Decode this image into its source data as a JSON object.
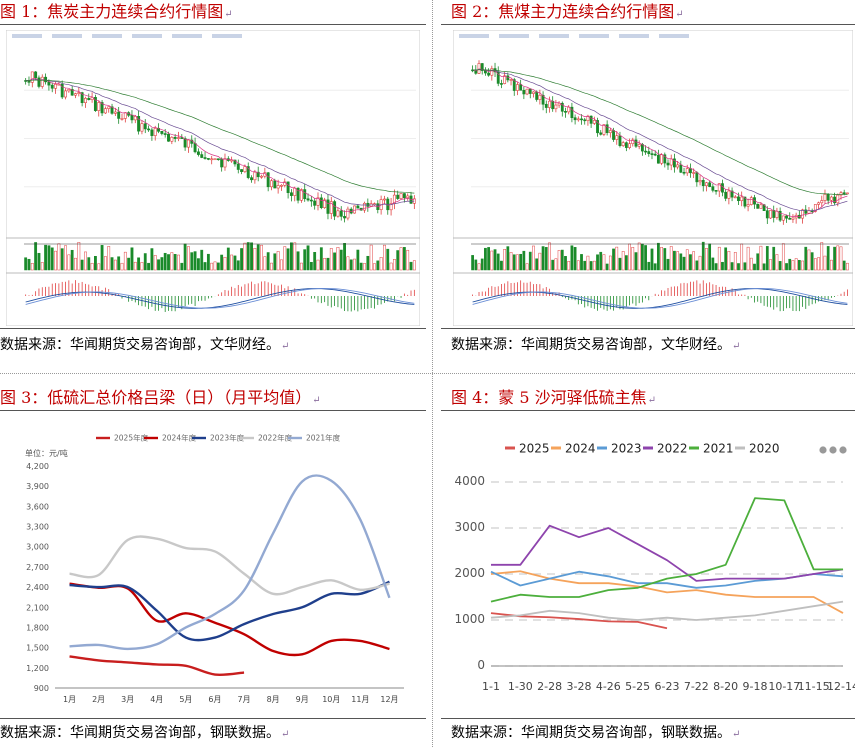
{
  "panels": [
    {
      "title": "图 1：焦炭主力连续合约行情图",
      "source": "数据来源：华闻期货交易咨询部，文华财经。"
    },
    {
      "title": "图 2：焦煤主力连续合约行情图",
      "source": "数据来源：华闻期货交易咨询部，文华财经。"
    },
    {
      "title": "图 3：低硫汇总价格吕梁（日）（月平均值）",
      "source": "数据来源：华闻期货交易咨询部，钢联数据。"
    },
    {
      "title": "图 4：蒙 5 沙河驿低硫主焦",
      "source": "数据来源：华闻期货交易咨询部，钢联数据。"
    }
  ],
  "chart_data": [
    {
      "type": "line",
      "title": "",
      "unit": "单位：元/吨",
      "categories": [
        "1月",
        "2月",
        "3月",
        "4月",
        "5月",
        "6月",
        "7月",
        "8月",
        "9月",
        "10月",
        "11月",
        "12月"
      ],
      "ylim": [
        900,
        4200
      ],
      "yticks": [
        "900",
        "1,200",
        "1,500",
        "1,800",
        "2,100",
        "2,400",
        "2,700",
        "3,000",
        "3,300",
        "3,600",
        "3,900",
        "4,200"
      ],
      "legend_position": "top",
      "series": [
        {
          "name": "2025年度",
          "color": "#c81e1e",
          "values": [
            1370,
            1310,
            1280,
            1250,
            1230,
            1100,
            1130,
            null,
            null,
            null,
            null,
            null
          ]
        },
        {
          "name": "2024年度",
          "color": "#c00000",
          "values": [
            2450,
            2390,
            2380,
            1900,
            2010,
            1870,
            1700,
            1450,
            1400,
            1600,
            1600,
            1480
          ]
        },
        {
          "name": "2023年度",
          "color": "#1f3f8c",
          "values": [
            2430,
            2400,
            2400,
            2050,
            1650,
            1650,
            1850,
            2000,
            2100,
            2300,
            2300,
            2480
          ]
        },
        {
          "name": "2022年度",
          "color": "#c8c8c8",
          "values": [
            2600,
            2580,
            3100,
            3120,
            2980,
            2930,
            2600,
            2300,
            2400,
            2500,
            2360,
            2450
          ]
        },
        {
          "name": "2021年度",
          "color": "#93a9d2",
          "values": [
            1520,
            1540,
            1480,
            1550,
            1800,
            2000,
            2350,
            3200,
            3970,
            3980,
            3400,
            2240
          ]
        }
      ]
    },
    {
      "type": "line",
      "title": "",
      "categories": [
        "1-1",
        "1-30",
        "2-28",
        "3-28",
        "4-26",
        "5-25",
        "6-23",
        "7-22",
        "8-20",
        "9-18",
        "10-17",
        "11-15",
        "12-14"
      ],
      "ylim": [
        0,
        4000
      ],
      "yticks": [
        "0",
        "1000",
        "2000",
        "3000",
        "4000"
      ],
      "legend_position": "top",
      "series": [
        {
          "name": "2025",
          "color": "#d9534f",
          "values": [
            1150,
            1080,
            1060,
            1020,
            970,
            960,
            820,
            null,
            null,
            null,
            null,
            null,
            null
          ]
        },
        {
          "name": "2024",
          "color": "#f5a35b",
          "values": [
            2000,
            2060,
            1900,
            1800,
            1800,
            1730,
            1600,
            1650,
            1550,
            1500,
            1500,
            1500,
            1150
          ]
        },
        {
          "name": "2023",
          "color": "#5b9bd5",
          "values": [
            2050,
            1750,
            1900,
            2050,
            1950,
            1800,
            1800,
            1700,
            1750,
            1850,
            1900,
            2000,
            1950
          ]
        },
        {
          "name": "2022",
          "color": "#8e44ad",
          "values": [
            2200,
            2200,
            3050,
            2800,
            3000,
            2650,
            2300,
            1850,
            1900,
            1900,
            1900,
            2000,
            2100
          ]
        },
        {
          "name": "2021",
          "color": "#4caf3c",
          "values": [
            1400,
            1550,
            1500,
            1500,
            1650,
            1700,
            1900,
            2000,
            2200,
            3650,
            3600,
            2100,
            2100
          ]
        },
        {
          "name": "2020",
          "color": "#bfbfbf",
          "values": [
            1050,
            1100,
            1200,
            1150,
            1050,
            1000,
            1050,
            1000,
            1050,
            1100,
            1200,
            1300,
            1400
          ]
        }
      ]
    }
  ]
}
